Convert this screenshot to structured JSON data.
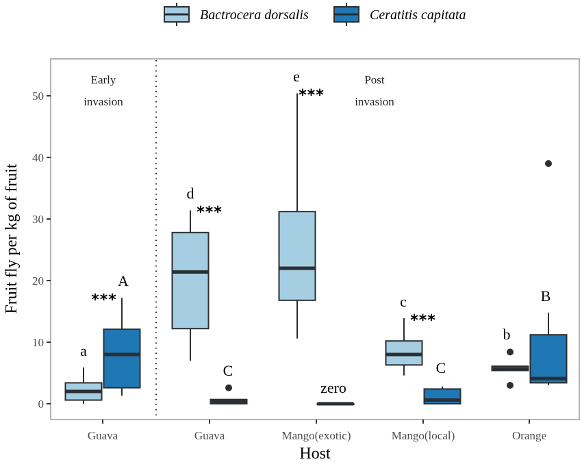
{
  "chart_data": {
    "type": "box",
    "title": "",
    "xlabel": "Host",
    "ylabel": "Fruit fly per kg of fruit",
    "ylim": [
      -2.5,
      56
    ],
    "yticks": [
      0,
      10,
      20,
      30,
      40,
      50
    ],
    "grid": false,
    "legend": {
      "position": "top",
      "entries": [
        "Bactrocera dorsalis",
        "Ceratitis capitata"
      ]
    },
    "series_colors": {
      "Bactrocera dorsalis": "#a6cee3",
      "Ceratitis capitata": "#1f78b4"
    },
    "outline_color": "#2b2f33",
    "categories": [
      "Guava",
      "Guava",
      "Mango(exotic)",
      "Mango(local)",
      "Orange"
    ],
    "sections": [
      {
        "label_line1": "Early",
        "label_line2": "invasion",
        "categories": [
          0
        ]
      },
      {
        "label_line1": "Post",
        "label_line2": "invasion",
        "categories": [
          1,
          2,
          3,
          4
        ]
      }
    ],
    "series": [
      {
        "name": "Bactrocera dorsalis",
        "boxes": [
          {
            "min": 0.0,
            "q1": 0.6,
            "median": 2.0,
            "q3": 3.4,
            "max": 5.9,
            "outliers": []
          },
          {
            "min": 7.0,
            "q1": 12.2,
            "median": 21.4,
            "q3": 27.8,
            "max": 31.4,
            "outliers": []
          },
          {
            "min": 10.6,
            "q1": 16.8,
            "median": 22.0,
            "q3": 31.2,
            "max": 50.4,
            "outliers": []
          },
          {
            "min": 4.6,
            "q1": 6.3,
            "median": 8.0,
            "q3": 10.2,
            "max": 13.9,
            "outliers": []
          },
          {
            "min": 5.4,
            "q1": 5.4,
            "median": 5.7,
            "q3": 6.1,
            "max": 6.1,
            "outliers": [
              8.4,
              3.0
            ]
          }
        ]
      },
      {
        "name": "Ceratitis capitata",
        "boxes": [
          {
            "min": 1.3,
            "q1": 2.6,
            "median": 8.0,
            "q3": 12.1,
            "max": 17.2,
            "outliers": []
          },
          {
            "min": 0.0,
            "q1": 0.0,
            "median": 0.3,
            "q3": 0.7,
            "max": 0.7,
            "outliers": [
              2.6
            ]
          },
          {
            "min": 0.0,
            "q1": 0.0,
            "median": 0.0,
            "q3": 0.0,
            "max": 0.0,
            "outliers": []
          },
          {
            "min": 0.0,
            "q1": 0.0,
            "median": 0.6,
            "q3": 2.4,
            "max": 2.8,
            "outliers": []
          },
          {
            "min": 3.0,
            "q1": 3.4,
            "median": 4.1,
            "q3": 11.2,
            "max": 14.8,
            "outliers": [
              39.0
            ]
          }
        ]
      }
    ],
    "annotations": [
      {
        "text": "a",
        "category": 0,
        "series": 0,
        "kind": "letter"
      },
      {
        "text": "***",
        "category": 0,
        "series": 1,
        "kind": "stars"
      },
      {
        "text": "A",
        "category": 0,
        "series": 1,
        "kind": "letter"
      },
      {
        "text": "d",
        "category": 1,
        "series": 0,
        "kind": "letter"
      },
      {
        "text": "***",
        "category": 1,
        "series": 0,
        "kind": "stars"
      },
      {
        "text": "C",
        "category": 1,
        "series": 1,
        "kind": "letter"
      },
      {
        "text": "e",
        "category": 2,
        "series": 0,
        "kind": "letter"
      },
      {
        "text": "***",
        "category": 2,
        "series": 0,
        "kind": "stars"
      },
      {
        "text": "zero",
        "category": 2,
        "series": 1,
        "kind": "letter"
      },
      {
        "text": "c",
        "category": 3,
        "series": 0,
        "kind": "letter"
      },
      {
        "text": "***",
        "category": 3,
        "series": 0,
        "kind": "stars"
      },
      {
        "text": "C",
        "category": 3,
        "series": 1,
        "kind": "letter"
      },
      {
        "text": "b",
        "category": 4,
        "series": 0,
        "kind": "letter"
      },
      {
        "text": "B",
        "category": 4,
        "series": 1,
        "kind": "letter"
      }
    ]
  }
}
